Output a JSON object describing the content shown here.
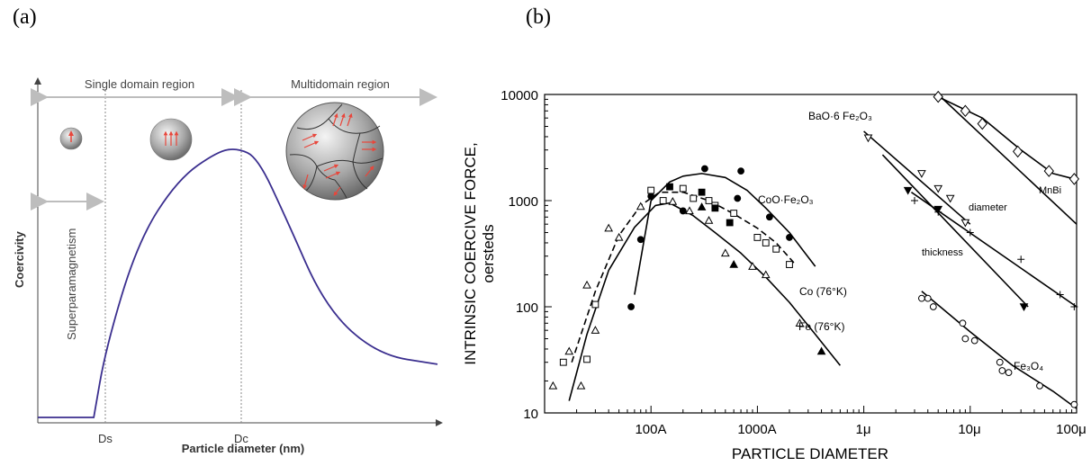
{
  "panels": {
    "a_label": "(a)",
    "b_label": "(b)"
  },
  "chart_data": [
    {
      "type": "line",
      "regions": {
        "single_domain": "Single domain region",
        "multidomain": "Multidomain region",
        "superparamagnetism": "Superparamagnetism"
      },
      "ylabel": "Coercivity",
      "xlabel": "Particle diameter (nm)",
      "xticks": [
        "Ds",
        "Dc"
      ],
      "curve": {
        "x": [
          0,
          0.14,
          0.17,
          0.25,
          0.35,
          0.45,
          0.5,
          0.55,
          0.62,
          0.72,
          0.85,
          1.0
        ],
        "y": [
          0.0,
          0.0,
          0.22,
          0.56,
          0.76,
          0.85,
          0.86,
          0.83,
          0.64,
          0.35,
          0.2,
          0.17
        ]
      },
      "colors": {
        "curve": "#3b2f8f",
        "axis_guides": "#bdbdbd",
        "arrow": "#e8463b",
        "sphere": "#9a9a9a"
      }
    },
    {
      "type": "line",
      "xscale": "log",
      "yscale": "log",
      "xlabel": "PARTICLE DIAMETER",
      "ylabel_line1": "INTRINSIC COERCIVE FORCE,",
      "ylabel_line2": "oersteds",
      "yticks": [
        "10",
        "100",
        "1000",
        "10000"
      ],
      "xticks": [
        "100A",
        "1000A",
        "1μ",
        "10μ",
        "100μ"
      ],
      "xlim_cm": [
        1e-07,
        0.01
      ],
      "ylim": [
        10,
        10000
      ],
      "series": [
        {
          "name": "CoO·Fe₂O₃",
          "style": "solid",
          "marker": "filled-circle",
          "x": [
            7e-07,
            1e-06,
            1.5e-06,
            2e-06,
            3e-06,
            5e-06,
            8e-06,
            1.2e-05,
            2e-05,
            3.5e-05
          ],
          "y": [
            130,
            1000,
            1500,
            1700,
            1800,
            1650,
            1250,
            850,
            500,
            240
          ],
          "points": {
            "x": [
              6.5e-07,
              8e-07,
              3.2e-06,
              7e-06,
              1e-06,
              2e-06,
              6.5e-06,
              1.3e-05,
              2e-05
            ],
            "y": [
              100,
              430,
              2000,
              1900,
              1100,
              800,
              1050,
              700,
              450
            ]
          }
        },
        {
          "name": "Co (76°K)",
          "style": "dashed",
          "marker": "open-square",
          "x": [
            1.8e-07,
            3e-07,
            5e-07,
            8e-07,
            1.2e-06,
            2e-06,
            3.5e-06,
            6e-06,
            1e-05,
            1.5e-05,
            2.2e-05
          ],
          "y": [
            30,
            140,
            470,
            900,
            1200,
            1200,
            1000,
            750,
            550,
            400,
            260
          ],
          "points": {
            "x": [
              1.5e-07,
              2.5e-07,
              3e-07,
              1e-06,
              1.3e-06,
              2e-06,
              2.5e-06,
              3.5e-06,
              4e-06,
              6e-06,
              1e-05,
              1.2e-05,
              1.5e-05,
              2e-05
            ],
            "y": [
              30,
              32,
              105,
              1250,
              1000,
              1300,
              1050,
              1000,
              900,
              760,
              450,
              400,
              350,
              250
            ]
          }
        },
        {
          "name": "Co (76°K) filled",
          "style": "none",
          "marker": "filled-square",
          "points": {
            "x": [
              1.5e-06,
              3e-06,
              4e-06,
              5.5e-06
            ],
            "y": [
              1350,
              1200,
              850,
              620
            ]
          }
        },
        {
          "name": "Fe (76°K)",
          "style": "solid",
          "marker": "open-triangle",
          "x": [
            1.7e-07,
            2.5e-07,
            4e-07,
            7e-07,
            1.1e-06,
            1.5e-06,
            2.5e-06,
            4e-06,
            7e-06,
            1.2e-05,
            2e-05,
            3.5e-05,
            6e-05
          ],
          "y": [
            13,
            55,
            220,
            560,
            900,
            950,
            720,
            500,
            320,
            190,
            110,
            55,
            28
          ],
          "points": {
            "x": [
              1.2e-07,
              1.7e-07,
              2.2e-07,
              2.5e-07,
              3e-07,
              4e-07,
              5e-07,
              8e-07,
              1.6e-06,
              2.3e-06,
              3.5e-06,
              5e-06,
              9e-06,
              1.2e-05,
              2.5e-05
            ],
            "y": [
              18,
              38,
              18,
              160,
              60,
              550,
              450,
              880,
              980,
              800,
              650,
              320,
              240,
              200,
              70
            ]
          }
        },
        {
          "name": "Fe (76°K) filled",
          "style": "none",
          "marker": "filled-triangle",
          "points": {
            "x": [
              3e-06,
              6e-06,
              4e-05
            ],
            "y": [
              870,
              250,
              38
            ]
          }
        },
        {
          "name": "BaO·6 Fe₂O₃ diameter",
          "style": "solid",
          "marker": "open-triangle-down",
          "x": [
            0.0001,
            0.001
          ],
          "y": [
            4500,
            600
          ],
          "points": {
            "x": [
              0.00011,
              0.00035,
              0.0005,
              0.00065,
              0.0009
            ],
            "y": [
              3900,
              1800,
              1300,
              1050,
              620
            ]
          }
        },
        {
          "name": "thickness",
          "style": "solid",
          "marker": "plus",
          "x": [
            0.00028,
            0.01
          ],
          "y": [
            1200,
            100
          ],
          "points": {
            "x": [
              0.0003,
              0.0005,
              0.001,
              0.003,
              0.007,
              0.0095
            ],
            "y": [
              1000,
              780,
              500,
              280,
              130,
              100
            ]
          }
        },
        {
          "name": "BaO·6 Fe₂O₃ filled",
          "style": "solid",
          "marker": "filled-triangle-down",
          "x": [
            0.00015,
            0.0035
          ],
          "y": [
            2700,
            100
          ],
          "points": {
            "x": [
              0.00026,
              0.0005,
              0.0032
            ],
            "y": [
              1250,
              830,
              100
            ]
          }
        },
        {
          "name": "MnBi",
          "style": "solid",
          "marker": "open-diamond",
          "x": [
            0.0005,
            0.01
          ],
          "y": [
            10000,
            600
          ],
          "points": {
            "x": [
              0.0005,
              0.0009,
              0.0013,
              0.0028,
              0.0055,
              0.0095
            ],
            "y": [
              9500,
              7000,
              5300,
              2900,
              1900,
              1600
            ]
          }
        },
        {
          "name": "MnBi upper",
          "style": "solid",
          "marker": "none",
          "x": [
            0.0005,
            0.0013,
            0.003,
            0.006,
            0.0095
          ],
          "y": [
            9500,
            6000,
            3000,
            1800,
            1600
          ]
        },
        {
          "name": "Fe₃O₄",
          "style": "solid",
          "marker": "open-circle",
          "x": [
            0.00035,
            0.001,
            0.0025,
            0.006,
            0.01
          ],
          "y": [
            140,
            58,
            28,
            16,
            11
          ],
          "points": {
            "x": [
              0.00035,
              0.0004,
              0.00045,
              0.00085,
              0.0009,
              0.0011,
              0.0019,
              0.002,
              0.0023,
              0.0045,
              0.0095
            ],
            "y": [
              120,
              120,
              100,
              70,
              50,
              48,
              30,
              25,
              24,
              18,
              12
            ]
          }
        }
      ],
      "labels": {
        "coo": "CoO·Fe₂O₃",
        "co": "Co (76°K)",
        "fe": "Fe (76°K)",
        "bao": "BaO·6 Fe₂O₃",
        "diameter": "diameter",
        "thickness": "thickness",
        "mnbi": "MnBi",
        "fe3o4": "Fe₃O₄"
      }
    }
  ]
}
